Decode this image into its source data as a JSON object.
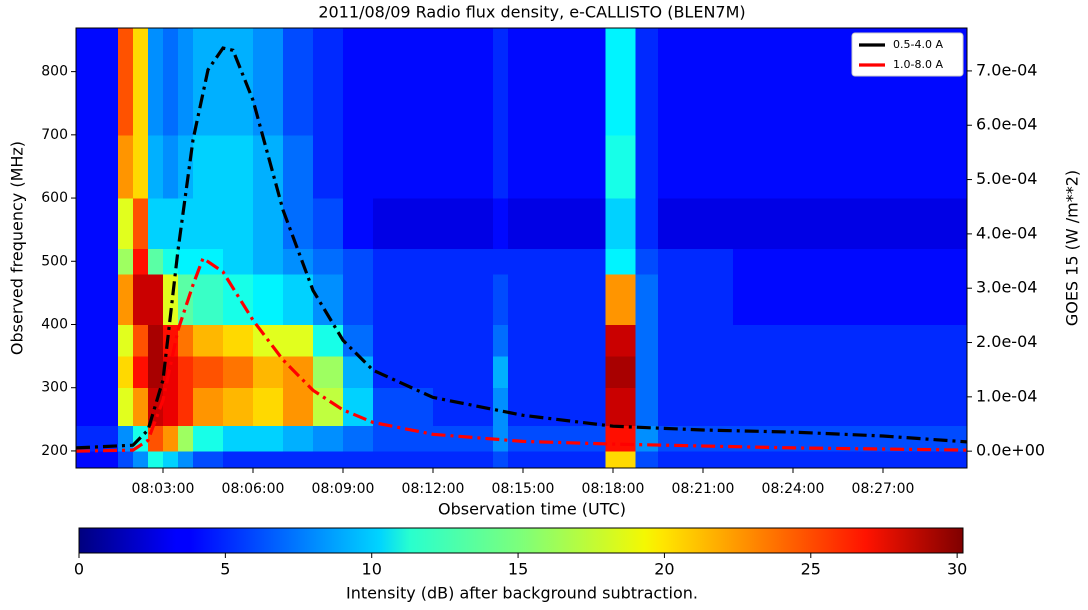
{
  "chart_data": {
    "type": "heatmap",
    "title": "2011/08/09  Radio flux density, e-CALLISTO (BLEN7M)",
    "x_label": "Observation time (UTC)",
    "y_label": "Observed frequency (MHz)",
    "y2_label": "GOES 15  (W /m**2)",
    "xlim": [
      "08:00:06",
      "08:29:48"
    ],
    "xticks": [
      "08:03:00",
      "08:06:00",
      "08:09:00",
      "08:12:00",
      "08:15:00",
      "08:18:00",
      "08:21:00",
      "08:24:00",
      "08:27:00"
    ],
    "ylim": [
      173,
      869
    ],
    "yticks": [
      200,
      300,
      400,
      500,
      600,
      700,
      800
    ],
    "y2lim": [
      -3.1e-05,
      0.000779
    ],
    "y2ticks": [
      {
        "value": 0,
        "label": "0.0e+00"
      },
      {
        "value": 0.0001,
        "label": "1.0e-04"
      },
      {
        "value": 0.0002,
        "label": "2.0e-04"
      },
      {
        "value": 0.0003,
        "label": "3.0e-04"
      },
      {
        "value": 0.0004,
        "label": "4.0e-04"
      },
      {
        "value": 0.0005,
        "label": "5.0e-04"
      },
      {
        "value": 0.0006,
        "label": "6.0e-04"
      },
      {
        "value": 0.0007,
        "label": "7.0e-04"
      }
    ],
    "legend": "upper right",
    "heatmap": {
      "x": [
        "08:00:06",
        "08:01:30",
        "08:02:00",
        "08:02:30",
        "08:03:00",
        "08:03:30",
        "08:04:00",
        "08:05:00",
        "08:06:00",
        "08:07:00",
        "08:08:00",
        "08:09:00",
        "08:10:00",
        "08:12:00",
        "08:14:00",
        "08:14:30",
        "08:17:45",
        "08:18:45",
        "08:19:30",
        "08:22:00",
        "08:25:00",
        "08:29:48"
      ],
      "y": [
        173,
        200,
        240,
        300,
        350,
        400,
        480,
        520,
        600,
        700,
        869
      ],
      "z": [
        [
          4,
          6,
          8,
          12,
          10,
          8,
          6,
          5,
          5,
          5,
          5,
          5,
          5,
          5,
          6,
          5,
          20,
          6,
          5,
          5,
          5
        ],
        [
          5,
          8,
          12,
          24,
          22,
          16,
          12,
          10,
          10,
          9,
          8,
          7,
          6,
          6,
          8,
          6,
          26,
          8,
          6,
          6,
          6
        ],
        [
          4,
          18,
          22,
          28,
          27,
          25,
          22,
          21,
          20,
          22,
          17,
          10,
          6,
          5,
          8,
          5,
          28,
          7,
          5,
          5,
          5
        ],
        [
          4,
          20,
          26,
          29,
          27,
          25,
          24,
          23,
          21,
          22,
          16,
          9,
          5,
          5,
          9,
          5,
          29,
          7,
          5,
          5,
          5
        ],
        [
          4,
          18,
          24,
          29,
          26,
          23,
          21,
          20,
          18,
          18,
          12,
          7,
          5,
          5,
          7,
          5,
          28,
          7,
          5,
          5,
          5
        ],
        [
          4,
          22,
          28,
          28,
          18,
          14,
          13,
          12,
          11,
          10,
          8,
          6,
          5,
          5,
          6,
          5,
          22,
          7,
          5,
          4,
          4
        ],
        [
          4,
          16,
          26,
          14,
          12,
          11,
          11,
          10,
          9,
          8,
          7,
          6,
          5,
          5,
          5,
          5,
          11,
          6,
          5,
          4,
          4
        ],
        [
          4,
          18,
          24,
          10,
          10,
          10,
          10,
          10,
          9,
          7,
          6,
          4,
          3,
          3,
          4,
          3,
          10,
          5,
          3,
          3,
          3
        ],
        [
          4,
          22,
          20,
          9,
          8,
          9,
          10,
          10,
          9,
          7,
          5,
          4,
          4,
          4,
          5,
          4,
          12,
          5,
          4,
          4,
          4
        ],
        [
          4,
          24,
          20,
          8,
          7,
          8,
          9,
          9,
          8,
          6,
          5,
          4,
          4,
          4,
          5,
          4,
          11,
          5,
          4,
          4,
          4
        ]
      ],
      "zlim": [
        0,
        30.2
      ],
      "colorbar_ticks": [
        0,
        5,
        10,
        15,
        20,
        25,
        30
      ],
      "colorbar_label": "Intensity (dB) after background subtraction."
    },
    "series": [
      {
        "name": "0.5-4.0 A",
        "color": "#000000",
        "axis": "y2",
        "x": [
          "08:00:06",
          "08:02:00",
          "08:02:30",
          "08:03:00",
          "08:03:30",
          "08:04:00",
          "08:04:30",
          "08:05:00",
          "08:05:20",
          "08:06:00",
          "08:07:00",
          "08:08:00",
          "08:09:00",
          "08:10:00",
          "08:12:00",
          "08:15:00",
          "08:18:00",
          "08:21:00",
          "08:24:00",
          "08:27:00",
          "08:29:48"
        ],
        "values": [
          6e-06,
          1.1e-05,
          3.9e-05,
          0.000131,
          0.00037,
          0.000573,
          0.000702,
          0.000742,
          0.000738,
          0.000646,
          0.000444,
          0.000296,
          0.000204,
          0.000149,
          9.9e-05,
          6.6e-05,
          4.6e-05,
          3.9e-05,
          3.5e-05,
          2.8e-05,
          1.7e-05
        ]
      },
      {
        "name": "1.0-8.0 A",
        "color": "#ff0000",
        "axis": "y2",
        "x": [
          "08:00:06",
          "08:02:00",
          "08:02:30",
          "08:03:00",
          "08:03:30",
          "08:04:00",
          "08:04:20",
          "08:05:00",
          "08:06:00",
          "08:07:00",
          "08:08:00",
          "08:09:00",
          "08:10:00",
          "08:12:00",
          "08:15:00",
          "08:18:00",
          "08:24:00",
          "08:29:48"
        ],
        "values": [
          0,
          2e-06,
          2e-05,
          9.4e-05,
          0.000223,
          0.000306,
          0.000355,
          0.00033,
          0.000241,
          0.000168,
          0.000112,
          7.6e-05,
          5.3e-05,
          3.1e-05,
          1.8e-05,
          1.3e-05,
          6e-06,
          2e-06
        ]
      }
    ]
  }
}
